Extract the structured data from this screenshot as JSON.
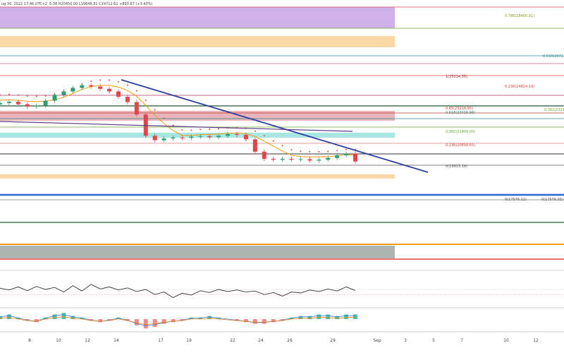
{
  "header": {
    "symbol_line": "ug 30, 2022 17:46 UTC+2",
    "ohlc_line": "6.38  H20450.00  L19648.81  C19712.61  +893.67 (+3.40%)"
  },
  "chart_data": [
    {
      "type": "line",
      "role": "price-candles",
      "x_ticks": [
        "8",
        "10",
        "12",
        "14",
        "17",
        "19",
        "22",
        "24",
        "26",
        "29",
        "Sep",
        "3",
        "5",
        "7",
        "10",
        "12"
      ],
      "fib_labels": [
        {
          "text": "0.786(28400.91)",
          "color": "#8a9a1a"
        },
        {
          "text": "0.618(26721",
          "color": "#2e8b8b"
        },
        {
          "text": "1(25214.35)",
          "color": "#b03030"
        },
        {
          "text": "0.236(24814.19)",
          "color": "#d23c3c"
        },
        {
          "text": "0.382(2323",
          "color": "#6aa832"
        },
        {
          "text": "0.65(23218.95)",
          "color": "#c0392b"
        },
        {
          "text": "0.618(23036.98)",
          "color": "#2e8b8b"
        },
        {
          "text": "0.382(21409.00)",
          "color": "#6aa832"
        },
        {
          "text": "0.236(20858.65)",
          "color": "#d23c3c"
        },
        {
          "text": "0(19913.19)",
          "color": "#555555"
        },
        {
          "text": "0(17576.12)",
          "color": "#555555"
        },
        {
          "text": "0(17576.35)",
          "color": "#555555"
        }
      ],
      "series": [
        {
          "name": "close",
          "color": "#2a2a2a",
          "x": [
            0,
            2,
            4,
            6,
            8,
            10,
            12,
            14,
            16,
            18,
            20,
            22,
            24,
            26,
            28,
            30,
            32,
            34,
            36,
            38,
            40,
            42,
            44,
            46,
            48,
            50,
            52,
            54,
            56,
            58,
            60,
            62,
            64,
            66,
            68,
            70,
            72,
            74,
            76,
            78
          ],
          "values": [
            23250,
            23320,
            23180,
            23050,
            23100,
            23380,
            23700,
            23900,
            24100,
            24250,
            24180,
            24050,
            23900,
            23600,
            23300,
            22600,
            21400,
            21150,
            21250,
            21300,
            21280,
            21350,
            21380,
            21320,
            21400,
            21500,
            21450,
            21200,
            20500,
            20100,
            20050,
            20100,
            20050,
            20080,
            20000,
            20050,
            20150,
            20300,
            20400,
            19950
          ]
        }
      ]
    },
    {
      "type": "line",
      "role": "oscillator",
      "series": [
        {
          "name": "rsi",
          "color": "#333333",
          "values": [
            55,
            48,
            60,
            45,
            62,
            50,
            58,
            40,
            65,
            44,
            70,
            52,
            60,
            48,
            56,
            42,
            50,
            30,
            40,
            18,
            35,
            28,
            45,
            38,
            50,
            42,
            48,
            40,
            44,
            30,
            38,
            24,
            40,
            36,
            48,
            42,
            52,
            44,
            60,
            46
          ]
        }
      ]
    },
    {
      "type": "bar",
      "role": "macd-histogram",
      "series": [
        {
          "name": "histogram",
          "values": [
            2,
            3,
            1,
            -1,
            -2,
            1,
            3,
            4,
            2,
            1,
            -1,
            -2,
            -1,
            1,
            -1,
            -4,
            -6,
            -5,
            -3,
            -2,
            -1,
            1,
            1,
            2,
            1,
            0,
            -1,
            -2,
            -3,
            -3,
            -2,
            -1,
            1,
            2,
            2,
            3,
            3,
            2,
            3,
            3
          ]
        }
      ]
    }
  ],
  "colors": {
    "up": "#2e9e6e",
    "down": "#e0454a",
    "purple_zone": "#cfb3e8",
    "orange_zone": "#fad8a6",
    "teal_zone": "#a8e6e2",
    "gray_zone": "#aeb5b3",
    "pink_zone": "#e8b5bb",
    "trend": "#2f3e9e"
  }
}
